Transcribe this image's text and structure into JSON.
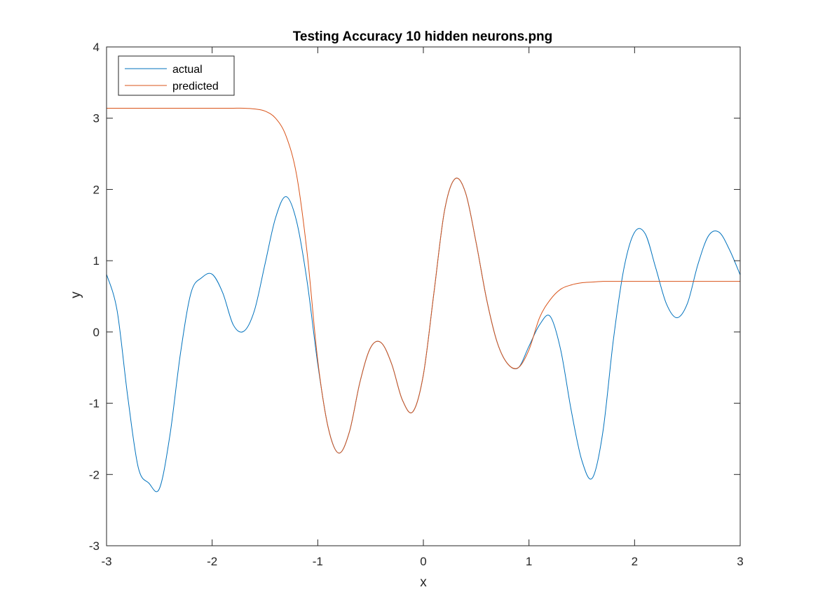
{
  "chart_data": {
    "type": "line",
    "title": "Testing Accuracy 10 hidden neurons.png",
    "xlabel": "x",
    "ylabel": "y",
    "xlim": [
      -3,
      3
    ],
    "ylim": [
      -3,
      4
    ],
    "xticks": [
      "-3",
      "-2",
      "-1",
      "0",
      "1",
      "2",
      "3"
    ],
    "yticks": [
      "-3",
      "-2",
      "-1",
      "0",
      "1",
      "2",
      "3",
      "4"
    ],
    "grid": false,
    "legend_position": "top-left",
    "series": [
      {
        "name": "actual",
        "color": "#0072BD",
        "x": [
          -3.0,
          -2.9,
          -2.8,
          -2.7,
          -2.6,
          -2.5,
          -2.4,
          -2.3,
          -2.2,
          -2.1,
          -2.0,
          -1.9,
          -1.8,
          -1.7,
          -1.6,
          -1.5,
          -1.4,
          -1.3,
          -1.2,
          -1.1,
          -1.0,
          -0.9,
          -0.8,
          -0.7,
          -0.6,
          -0.5,
          -0.4,
          -0.3,
          -0.2,
          -0.1,
          0.0,
          0.1,
          0.2,
          0.3,
          0.4,
          0.5,
          0.6,
          0.7,
          0.8,
          0.9,
          1.0,
          1.1,
          1.2,
          1.3,
          1.4,
          1.5,
          1.6,
          1.7,
          1.8,
          1.9,
          2.0,
          2.1,
          2.2,
          2.3,
          2.4,
          2.5,
          2.6,
          2.7,
          2.8,
          2.9,
          3.0
        ],
        "y": [
          0.81,
          0.3,
          -0.9,
          -1.9,
          -2.12,
          -2.2,
          -1.45,
          -0.3,
          0.55,
          0.76,
          0.81,
          0.55,
          0.1,
          0.01,
          0.3,
          0.95,
          1.6,
          1.9,
          1.55,
          0.7,
          -0.45,
          -1.35,
          -1.7,
          -1.4,
          -0.7,
          -0.22,
          -0.15,
          -0.45,
          -0.95,
          -1.12,
          -0.6,
          0.55,
          1.7,
          2.15,
          1.95,
          1.25,
          0.45,
          -0.15,
          -0.45,
          -0.5,
          -0.2,
          0.1,
          0.22,
          -0.25,
          -1.1,
          -1.8,
          -2.05,
          -1.4,
          -0.1,
          0.9,
          1.4,
          1.38,
          0.9,
          0.4,
          0.2,
          0.4,
          0.95,
          1.35,
          1.4,
          1.15,
          0.8
        ]
      },
      {
        "name": "predicted",
        "color": "#D95319",
        "x": [
          -3.0,
          -2.9,
          -2.8,
          -2.7,
          -2.6,
          -2.5,
          -2.4,
          -2.3,
          -2.2,
          -2.1,
          -2.0,
          -1.9,
          -1.8,
          -1.7,
          -1.6,
          -1.5,
          -1.4,
          -1.3,
          -1.2,
          -1.1,
          -1.0,
          -0.9,
          -0.8,
          -0.7,
          -0.6,
          -0.5,
          -0.4,
          -0.3,
          -0.2,
          -0.1,
          0.0,
          0.1,
          0.2,
          0.3,
          0.4,
          0.5,
          0.6,
          0.7,
          0.8,
          0.9,
          1.0,
          1.1,
          1.2,
          1.3,
          1.4,
          1.5,
          1.6,
          1.7,
          1.8,
          1.9,
          2.0,
          2.1,
          2.2,
          2.3,
          2.4,
          2.5,
          2.6,
          2.7,
          2.8,
          2.9,
          3.0
        ],
        "y": [
          3.14,
          3.14,
          3.14,
          3.14,
          3.14,
          3.14,
          3.14,
          3.14,
          3.14,
          3.14,
          3.14,
          3.14,
          3.14,
          3.14,
          3.13,
          3.1,
          3.0,
          2.75,
          2.2,
          1.1,
          -0.4,
          -1.35,
          -1.7,
          -1.4,
          -0.7,
          -0.22,
          -0.15,
          -0.45,
          -0.95,
          -1.12,
          -0.6,
          0.55,
          1.7,
          2.15,
          1.95,
          1.25,
          0.45,
          -0.15,
          -0.45,
          -0.5,
          -0.25,
          0.2,
          0.45,
          0.6,
          0.66,
          0.69,
          0.7,
          0.71,
          0.71,
          0.71,
          0.71,
          0.71,
          0.71,
          0.71,
          0.71,
          0.71,
          0.71,
          0.71,
          0.71,
          0.71,
          0.71
        ]
      }
    ]
  }
}
